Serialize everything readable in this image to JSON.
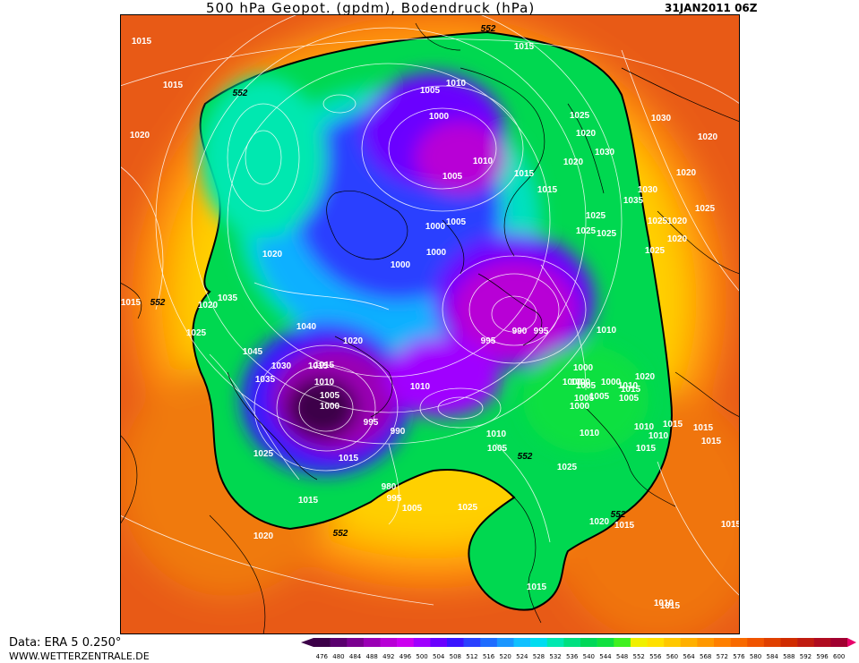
{
  "header": {
    "title": "500 hPa Geopot. (gpdm), Bodendruck (hPa)",
    "date": "31JAN2011 06Z"
  },
  "footer": {
    "data_source": "Data: ERA 5 0.250°",
    "website": "WWW.WETTERZENTRALE.DE"
  },
  "legend": {
    "values": [
      "476",
      "480",
      "484",
      "488",
      "492",
      "496",
      "500",
      "504",
      "508",
      "512",
      "516",
      "520",
      "524",
      "528",
      "532",
      "536",
      "540",
      "544",
      "548",
      "552",
      "556",
      "560",
      "564",
      "568",
      "572",
      "576",
      "580",
      "584",
      "588",
      "592",
      "596",
      "600"
    ],
    "colors": [
      "#3c0048",
      "#5a006e",
      "#7a0090",
      "#9a00b4",
      "#b800d6",
      "#cc00f0",
      "#a000ff",
      "#6a00ff",
      "#3a14ff",
      "#2a40ff",
      "#1e6cff",
      "#1a96ff",
      "#10c0ff",
      "#00dcf0",
      "#00e8b0",
      "#00e080",
      "#00d858",
      "#10e040",
      "#40f020",
      "#f0f000",
      "#ffe000",
      "#ffc800",
      "#ffb000",
      "#ff9800",
      "#ff8000",
      "#f86a00",
      "#f05400",
      "#e04000",
      "#d02c00",
      "#c01c10",
      "#b00c20",
      "#a00030"
    ]
  },
  "map": {
    "contour_labels": [
      {
        "text": "552"
      },
      {
        "text": "552"
      },
      {
        "text": "552"
      },
      {
        "text": "552"
      },
      {
        "text": "552"
      },
      {
        "text": "552"
      },
      {
        "text": "1015"
      },
      {
        "text": "1015"
      },
      {
        "text": "1020"
      },
      {
        "text": "1020"
      },
      {
        "text": "1015"
      },
      {
        "text": "1025"
      },
      {
        "text": "1020"
      },
      {
        "text": "1035"
      },
      {
        "text": "1045"
      },
      {
        "text": "1030"
      },
      {
        "text": "1035"
      },
      {
        "text": "1040"
      },
      {
        "text": "1025"
      },
      {
        "text": "1015"
      },
      {
        "text": "1020"
      },
      {
        "text": "1015"
      },
      {
        "text": "1020"
      },
      {
        "text": "1015"
      },
      {
        "text": "1010"
      },
      {
        "text": "1005"
      },
      {
        "text": "1000"
      },
      {
        "text": "995"
      },
      {
        "text": "990"
      },
      {
        "text": "980"
      },
      {
        "text": "995"
      },
      {
        "text": "1005"
      },
      {
        "text": "1025"
      },
      {
        "text": "1010"
      },
      {
        "text": "1015"
      },
      {
        "text": "1010"
      },
      {
        "text": "1005"
      },
      {
        "text": "1000"
      },
      {
        "text": "990"
      },
      {
        "text": "995"
      },
      {
        "text": "995"
      },
      {
        "text": "1000"
      },
      {
        "text": "1005"
      },
      {
        "text": "1000"
      },
      {
        "text": "1005"
      },
      {
        "text": "1000"
      },
      {
        "text": "1010"
      },
      {
        "text": "1015"
      },
      {
        "text": "1010"
      },
      {
        "text": "1005"
      },
      {
        "text": "1000"
      },
      {
        "text": "1005"
      },
      {
        "text": "1015"
      },
      {
        "text": "1025"
      },
      {
        "text": "1020"
      },
      {
        "text": "1030"
      },
      {
        "text": "1035"
      },
      {
        "text": "1025"
      },
      {
        "text": "1030"
      },
      {
        "text": "1020"
      },
      {
        "text": "1015"
      },
      {
        "text": "1025"
      },
      {
        "text": "1020"
      },
      {
        "text": "1025"
      },
      {
        "text": "1030"
      },
      {
        "text": "1025"
      },
      {
        "text": "1020"
      },
      {
        "text": "1025"
      },
      {
        "text": "1020"
      },
      {
        "text": "1025"
      },
      {
        "text": "1020"
      },
      {
        "text": "1010"
      },
      {
        "text": "1015"
      },
      {
        "text": "1020"
      },
      {
        "text": "1015"
      },
      {
        "text": "1010"
      },
      {
        "text": "1025"
      },
      {
        "text": "1015"
      },
      {
        "text": "1015"
      },
      {
        "text": "1015"
      },
      {
        "text": "1020"
      },
      {
        "text": "1015"
      },
      {
        "text": "1010"
      },
      {
        "text": "1010"
      },
      {
        "text": "1015"
      },
      {
        "text": "1015"
      },
      {
        "text": "1015"
      },
      {
        "text": "1000"
      },
      {
        "text": "1005"
      },
      {
        "text": "1000"
      },
      {
        "text": "1010"
      },
      {
        "text": "1005"
      },
      {
        "text": "1000"
      },
      {
        "text": "1000"
      },
      {
        "text": "1005"
      },
      {
        "text": "1010"
      }
    ]
  }
}
